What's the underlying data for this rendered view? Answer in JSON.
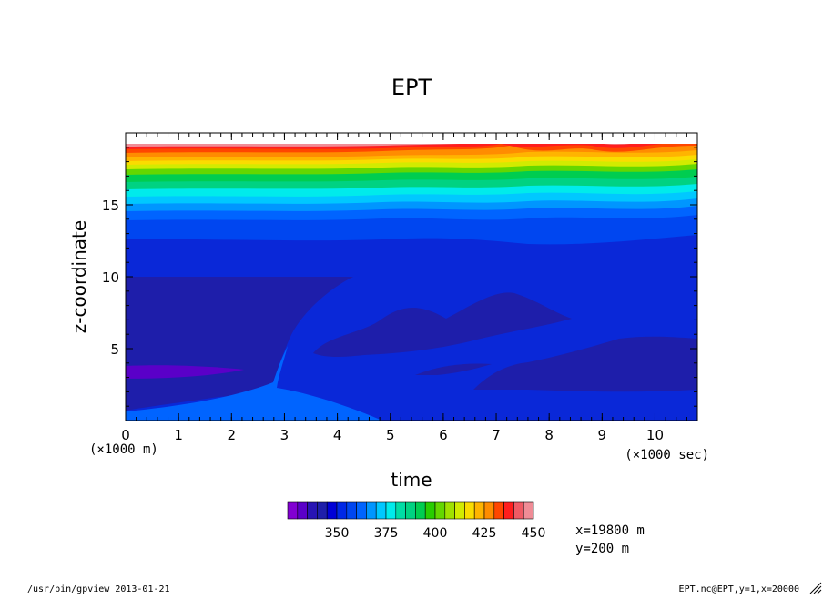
{
  "chart_data": {
    "type": "heatmap",
    "title": "EPT",
    "xlabel": "time",
    "ylabel": "z-coordinate",
    "x_unit_label": "(×1000 sec)",
    "y_unit_label": "(×1000 m)",
    "xlim": [
      0,
      10.8
    ],
    "ylim": [
      0,
      20
    ],
    "x_ticks": [
      "0",
      "1",
      "2",
      "3",
      "4",
      "5",
      "6",
      "7",
      "8",
      "9",
      "10"
    ],
    "y_ticks": [
      "5",
      "10",
      "15"
    ],
    "colorbar": {
      "tick_labels": [
        "350",
        "375",
        "400",
        "425",
        "450"
      ],
      "colors": [
        "#8200d2",
        "#5a00c8",
        "#2814b4",
        "#1e1eaa",
        "#0000d7",
        "#0028e6",
        "#0046f0",
        "#0064ff",
        "#0096ff",
        "#00c8ff",
        "#00ebeb",
        "#00dca5",
        "#00d282",
        "#00cd50",
        "#28cd00",
        "#64d700",
        "#a0e100",
        "#d2eb00",
        "#fadc00",
        "#ffb400",
        "#ff8c00",
        "#ff4600",
        "#ff1e1e",
        "#f05a64",
        "#f08c96"
      ]
    },
    "annotations": [
      "x=19800 m",
      "y=200 m"
    ]
  },
  "footer": {
    "left": "/usr/bin/gpview  2013-01-21",
    "right": "EPT.nc@EPT,y=1,x=20000"
  }
}
